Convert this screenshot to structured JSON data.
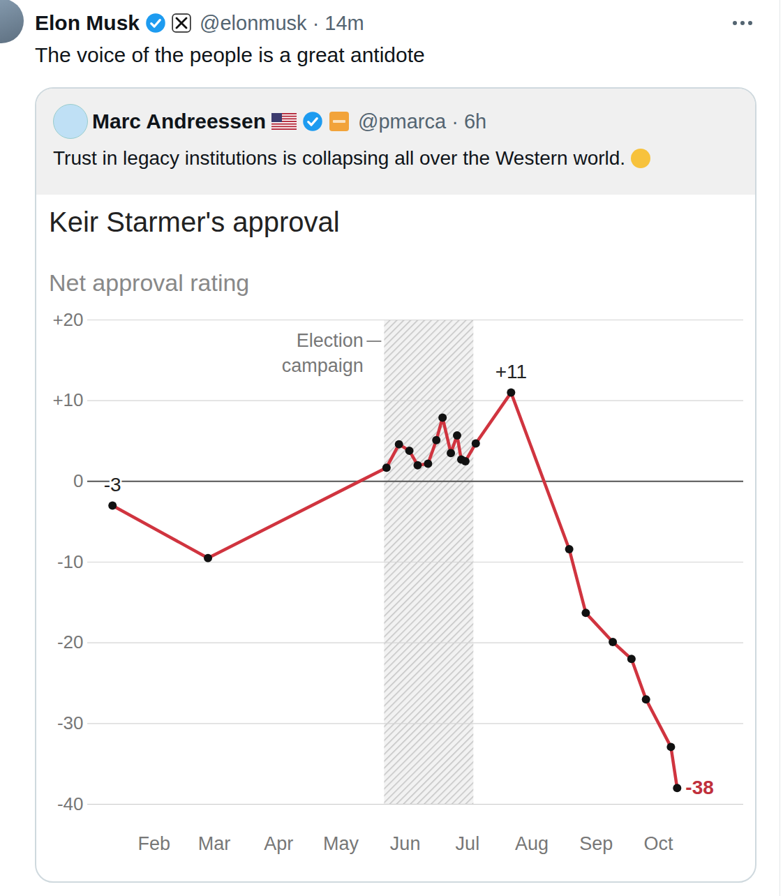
{
  "post": {
    "author": "Elon Musk",
    "handle_time": "@elonmusk · 14m",
    "text": "The voice of the people is a great antidote"
  },
  "quoted_post": {
    "author": "Marc Andreessen",
    "handle_time": "@pmarca · 6h",
    "text": "Trust in legacy institutions is collapsing all over the Western world."
  },
  "chart_data": {
    "type": "line",
    "title": "Keir Starmer's approval",
    "subtitle": "Net approval rating",
    "x": [
      12,
      58,
      144,
      150,
      155,
      159,
      164,
      168,
      171,
      175,
      178,
      180,
      182,
      187,
      204,
      232,
      240,
      253,
      262,
      269,
      281,
      284
    ],
    "values": [
      -3,
      -9.5,
      1.7,
      4.6,
      3.8,
      2.0,
      2.2,
      5.1,
      7.9,
      3.5,
      5.7,
      2.7,
      2.5,
      4.7,
      11,
      -8.4,
      -16.3,
      -19.9,
      -22,
      -27,
      -32.9,
      -38
    ],
    "color": "#d0343f",
    "marker": "circle",
    "xlim": [
      0,
      316
    ],
    "xticks": [
      {
        "value": 32,
        "label": "Feb"
      },
      {
        "value": 61,
        "label": "Mar"
      },
      {
        "value": 92,
        "label": "Apr"
      },
      {
        "value": 122,
        "label": "May"
      },
      {
        "value": 153,
        "label": "Jun"
      },
      {
        "value": 183,
        "label": "Jul"
      },
      {
        "value": 214,
        "label": "Aug"
      },
      {
        "value": 245,
        "label": "Sep"
      },
      {
        "value": 275,
        "label": "Oct"
      }
    ],
    "ylim": [
      -40,
      20
    ],
    "yticks": [
      {
        "value": 20,
        "label": "+20"
      },
      {
        "value": 10,
        "label": "+10"
      },
      0,
      -10,
      -20,
      -30,
      -40
    ],
    "grid": true,
    "shaded_region": {
      "label": "Election campaign",
      "x": [
        143,
        186
      ]
    },
    "annotations": [
      {
        "x": 12,
        "y": -3,
        "label": "-3"
      },
      {
        "x": 204,
        "y": 11,
        "label": "+11"
      },
      {
        "x": 284,
        "y": -38,
        "label": "-38",
        "color": "#c0303c"
      }
    ]
  }
}
